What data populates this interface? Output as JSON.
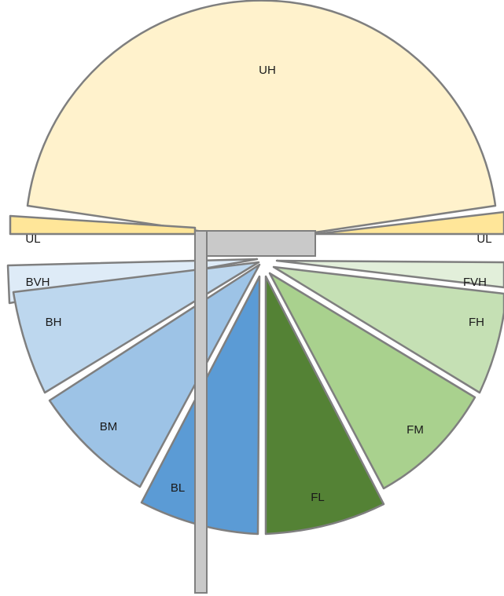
{
  "segments": {
    "uh": {
      "label": "UH",
      "color": "#fff2cc"
    },
    "ul_left": {
      "label": "UL",
      "color": "#ffe699"
    },
    "ul_right": {
      "label": "UL",
      "color": "#ffe699"
    },
    "bvh": {
      "label": "BVH",
      "color": "#deebf7"
    },
    "bh": {
      "label": "BH",
      "color": "#bdd7ee"
    },
    "bm": {
      "label": "BM",
      "color": "#9dc3e6"
    },
    "bl": {
      "label": "BL",
      "color": "#5b9bd5"
    },
    "fvh": {
      "label": "FVH",
      "color": "#e2efda"
    },
    "fh": {
      "label": "FH",
      "color": "#c5e0b4"
    },
    "fm": {
      "label": "FM",
      "color": "#a9d18e"
    },
    "fl": {
      "label": "FL",
      "color": "#548235"
    }
  }
}
